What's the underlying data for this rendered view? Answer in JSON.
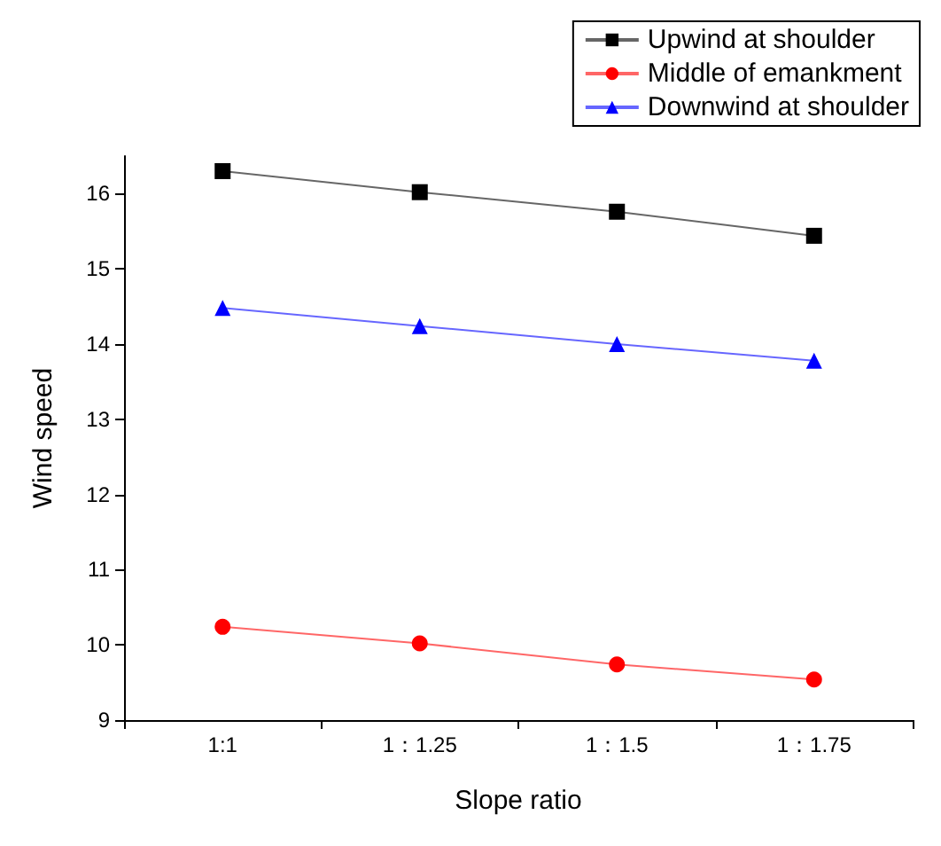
{
  "chart_data": {
    "type": "line",
    "xlabel": "Slope ratio",
    "ylabel": "Wind speed",
    "categories": [
      "1:1",
      "1：1.25",
      "1：1.5",
      "1：1.75"
    ],
    "series": [
      {
        "name": "Upwind at shoulder",
        "color": "#000000",
        "marker": "square",
        "values": [
          16.3,
          16.02,
          15.76,
          15.44
        ]
      },
      {
        "name": "Middle of emankment",
        "color": "#ff0000",
        "marker": "circle",
        "values": [
          10.24,
          10.02,
          9.74,
          9.54
        ]
      },
      {
        "name": "Downwind at shoulder",
        "color": "#0000ff",
        "marker": "triangle",
        "values": [
          14.48,
          14.24,
          14.0,
          13.78
        ]
      }
    ],
    "ylim": [
      9,
      16.5
    ],
    "yticks": [
      9,
      10,
      11,
      12,
      13,
      14,
      15,
      16
    ],
    "grid": false,
    "legend": "top right",
    "line_style": "solid"
  }
}
